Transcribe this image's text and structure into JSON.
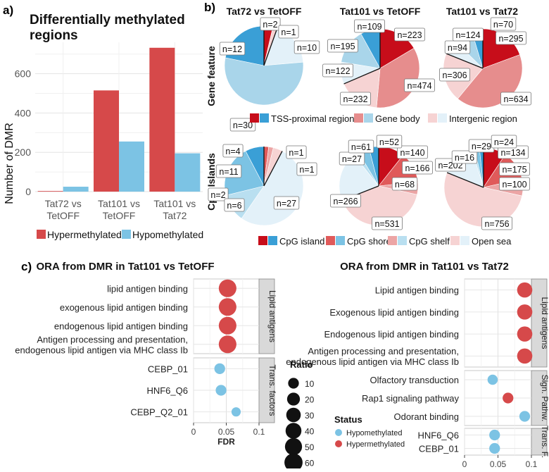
{
  "panel_labels": {
    "a": "a)",
    "b": "b)",
    "c": "c)"
  },
  "colors": {
    "hyper": "#d6494a",
    "hypo": "#7cc3e4",
    "tss_hyper": "#c70d1a",
    "tss_hypo": "#3a9fd6",
    "gene_hyper": "#e68d8d",
    "gene_hypo": "#a9d5ea",
    "inter_hyper": "#f6d3d3",
    "inter_hypo": "#e3f1f9",
    "island_hyper": "#c70d1a",
    "island_hypo": "#3a9fd6",
    "shore_hyper": "#e05a5a",
    "shore_hypo": "#7cc3e4",
    "shelf_hyper": "#eca5a5",
    "shelf_hypo": "#b9dff0",
    "sea_hyper": "#f6d3d3",
    "sea_hypo": "#e3f1f9"
  },
  "chart_data": [
    {
      "id": "dmr-bar",
      "type": "bar",
      "title": "Differentially methylated regions",
      "ylabel": "Number of DMR",
      "xlabel": "",
      "ylim": [
        0,
        760
      ],
      "yticks": [
        0,
        200,
        400,
        600
      ],
      "categories": [
        "Tat72 vs\nTetOFF",
        "Tat101 vs\nTetOFF",
        "Tat101 vs\nTat72"
      ],
      "series": [
        {
          "name": "Hypermethylated",
          "values": [
            3,
            515,
            732
          ]
        },
        {
          "name": "Hypomethylated",
          "values": [
            25,
            255,
            195
          ]
        }
      ],
      "legend": [
        "Hypermethylated",
        "Hypomethylated"
      ]
    },
    {
      "id": "pie-gene",
      "type": "pie",
      "row_label": "Gene feature",
      "column_titles": [
        "Tat72 vs TetOFF",
        "Tat101 vs TetOFF",
        "Tat101 vs Tat72"
      ],
      "slice_order": [
        "TSS hyper",
        "Gene body hyper",
        "Intergenic hyper",
        "Intergenic hypo",
        "Gene body hypo",
        "TSS hypo"
      ],
      "pies": [
        {
          "name": "Tat72 vs TetOFF",
          "values": [
            2,
            0,
            1,
            10,
            30,
            12
          ],
          "labels": [
            "n=2",
            "",
            "n=1",
            "n=10",
            "n=30",
            "n=12"
          ]
        },
        {
          "name": "Tat101 vs TetOFF",
          "values": [
            223,
            474,
            232,
            122,
            195,
            109
          ],
          "labels": [
            "n=223",
            "n=474",
            "n=232",
            "n=122",
            "n=195",
            "n=109"
          ]
        },
        {
          "name": "Tat101 vs Tat72",
          "values": [
            295,
            634,
            306,
            94,
            124,
            70
          ],
          "labels": [
            "n=295",
            "n=634",
            "n=306",
            "n=94",
            "n=124",
            "n=70"
          ]
        }
      ],
      "legend": [
        "TSS-proximal regions",
        "Gene body",
        "Intergenic region"
      ]
    },
    {
      "id": "pie-cpg",
      "type": "pie",
      "row_label": "CpG Islands",
      "slice_order": [
        "CpG island hyper",
        "CpG shore hyper",
        "CpG shelf hyper",
        "Open sea hyper",
        "Open sea hypo",
        "CpG shelf hypo",
        "CpG shore hypo",
        "CpG island hypo"
      ],
      "pies": [
        {
          "name": "Tat72 vs TetOFF",
          "values": [
            0,
            1,
            1,
            2,
            27,
            6,
            11,
            4
          ],
          "labels": [
            "",
            "n=1",
            "n=1",
            "n=2",
            "n=27",
            "n=6",
            "n=11",
            "n=4"
          ]
        },
        {
          "name": "Tat101 vs TetOFF",
          "values": [
            140,
            166,
            68,
            531,
            266,
            27,
            61,
            52
          ],
          "labels": [
            "n=140",
            "n=166",
            "n=68",
            "n=531",
            "n=266",
            "n=27",
            "n=61",
            "n=52"
          ]
        },
        {
          "name": "Tat101 vs Tat72",
          "values": [
            134,
            175,
            100,
            756,
            202,
            16,
            29,
            24
          ],
          "labels": [
            "n=134",
            "n=175",
            "n=100",
            "n=756",
            "n=202",
            "n=16",
            "n=29",
            "n=24"
          ]
        }
      ],
      "legend": [
        "CpG island",
        "CpG shore",
        "CpG shelf",
        "Open sea"
      ]
    },
    {
      "id": "ora-tetoff",
      "type": "scatter",
      "title": "ORA from DMR in Tat101 vs TetOFF",
      "xlabel": "FDR",
      "xlim": [
        0,
        0.1
      ],
      "xticks": [
        "0",
        "0.05",
        "0.1"
      ],
      "groups": [
        {
          "name": "Lipid antigens",
          "terms": [
            {
              "term": "lipid antigen binding",
              "fdr": 0.052,
              "ratio": 55,
              "status": "Hypermethylated"
            },
            {
              "term": "exogenous lipid antigen binding",
              "fdr": 0.052,
              "ratio": 55,
              "status": "Hypermethylated"
            },
            {
              "term": "endogenous lipid antigen binding",
              "fdr": 0.052,
              "ratio": 55,
              "status": "Hypermethylated"
            },
            {
              "term": "Antigen processing and presentation,\nendogenous lipid antigen via MHC class Ib",
              "fdr": 0.052,
              "ratio": 55,
              "status": "Hypermethylated"
            }
          ]
        },
        {
          "name": "Trans. factors",
          "terms": [
            {
              "term": "CEBP_01",
              "fdr": 0.04,
              "ratio": 10,
              "status": "Hypomethylated"
            },
            {
              "term": "HNF6_Q6",
              "fdr": 0.042,
              "ratio": 10,
              "status": "Hypomethylated"
            },
            {
              "term": "CEBP_Q2_01",
              "fdr": 0.065,
              "ratio": 5,
              "status": "Hypomethylated"
            }
          ]
        }
      ]
    },
    {
      "id": "ora-tat72",
      "type": "scatter",
      "title": "ORA from DMR in Tat101 vs Tat72",
      "xlabel": "FDR",
      "xlim": [
        0,
        0.1
      ],
      "xticks": [
        "0",
        "0.05",
        "0.1"
      ],
      "groups": [
        {
          "name": "Lipid antigens",
          "terms": [
            {
              "term": "Lipid antigen binding",
              "fdr": 0.09,
              "ratio": 35,
              "status": "Hypermethylated"
            },
            {
              "term": "Exogenous lipid antigen binding",
              "fdr": 0.09,
              "ratio": 35,
              "status": "Hypermethylated"
            },
            {
              "term": "Endogenous lipid antigen binding",
              "fdr": 0.09,
              "ratio": 35,
              "status": "Hypermethylated"
            },
            {
              "term": "Antigen processing and presentation,\nendogenous lipid antigen via MHC class Ib",
              "fdr": 0.09,
              "ratio": 35,
              "status": "Hypermethylated"
            }
          ]
        },
        {
          "name": "Sign. Pathw.",
          "terms": [
            {
              "term": "Olfactory transduction",
              "fdr": 0.042,
              "ratio": 8,
              "status": "Hypomethylated"
            },
            {
              "term": "Rap1 signaling pathway",
              "fdr": 0.065,
              "ratio": 10,
              "status": "Hypermethylated"
            },
            {
              "term": "Odorant binding",
              "fdr": 0.09,
              "ratio": 10,
              "status": "Hypomethylated"
            }
          ]
        },
        {
          "name": "Trans. F.",
          "terms": [
            {
              "term": "HNF6_Q6",
              "fdr": 0.045,
              "ratio": 10,
              "status": "Hypomethylated"
            },
            {
              "term": "CEBP_01",
              "fdr": 0.045,
              "ratio": 10,
              "status": "Hypomethylated"
            }
          ]
        }
      ]
    }
  ],
  "ratio_legend": {
    "title": "Ratio",
    "values": [
      10,
      20,
      30,
      40,
      50,
      60
    ]
  },
  "status_legend": {
    "title": "Status",
    "items": [
      "Hypomethylated",
      "Hypermethylated"
    ]
  }
}
